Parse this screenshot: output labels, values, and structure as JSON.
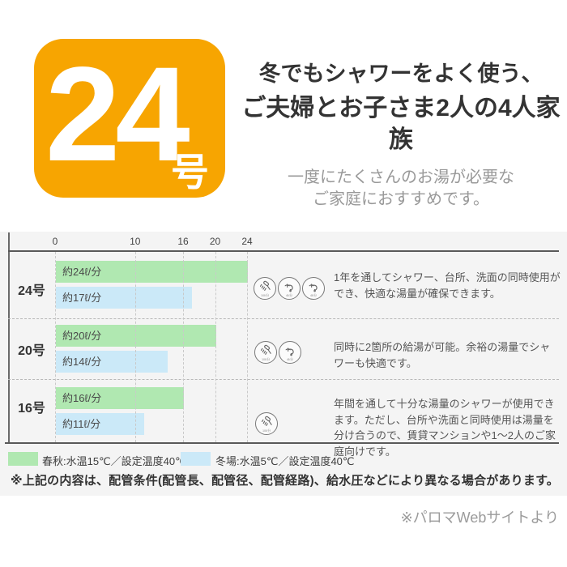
{
  "badge": {
    "number": "24",
    "unit": "号",
    "color": "#F7A501"
  },
  "headline": {
    "line1": "冬でもシャワーをよく使う、",
    "line2": "ご夫婦とお子さま2人の4人家族",
    "sub1": "一度にたくさんのお湯が必要な",
    "sub2": "ご家庭におすすめです。"
  },
  "chart_data": {
    "type": "bar",
    "orientation": "horizontal",
    "categories": [
      "24号",
      "20号",
      "16号"
    ],
    "series": [
      {
        "name": "春秋:水温15℃／設定温度40℃",
        "color": "#B0E8B1",
        "values": [
          24,
          20,
          16
        ],
        "labels": [
          "約24ℓ/分",
          "約20ℓ/分",
          "約16ℓ/分"
        ]
      },
      {
        "name": "冬場:水温5℃／設定温度40℃",
        "color": "#CBE9F8",
        "values": [
          17,
          14,
          11
        ],
        "labels": [
          "約17ℓ/分",
          "約14ℓ/分",
          "約11ℓ/分"
        ]
      }
    ],
    "x_ticks": [
      0,
      10,
      16,
      20,
      24
    ],
    "xlim": [
      0,
      24
    ],
    "unit": "ℓ/分",
    "grid": "dashed-vertical",
    "legend_position": "bottom"
  },
  "rows": [
    {
      "icons": [
        "shower",
        "faucet",
        "faucet"
      ],
      "desc": "1年を通してシャワー、台所、洗面の同時使用ができ、快適な湯量が確保できます。"
    },
    {
      "icons": [
        "shower",
        "faucet"
      ],
      "desc": "同時に2箇所の給湯が可能。余裕の湯量でシャワーも快適です。"
    },
    {
      "icons": [
        "shower"
      ],
      "desc": "年間を通して十分な湯量のシャワーが使用できます。ただし、台所や洗面と同時使用は湯量を分け合うので、賃貸マンションや1〜2人のご家庭向けです。"
    }
  ],
  "legend": [
    {
      "label": "春秋:水温15℃／設定温度40℃",
      "color": "#B0E8B1"
    },
    {
      "label": "冬場:水温5℃／設定温度40℃",
      "color": "#CBE9F8"
    }
  ],
  "icon_flow_labels": {
    "shower": "10ℓ/分",
    "faucet": "4ℓ/分"
  },
  "footnote": "※上記の内容は、配管条件(配管長、配管径、配管経路)、給水圧などにより異なる場合があります。",
  "source": "※パロマWebサイトより"
}
